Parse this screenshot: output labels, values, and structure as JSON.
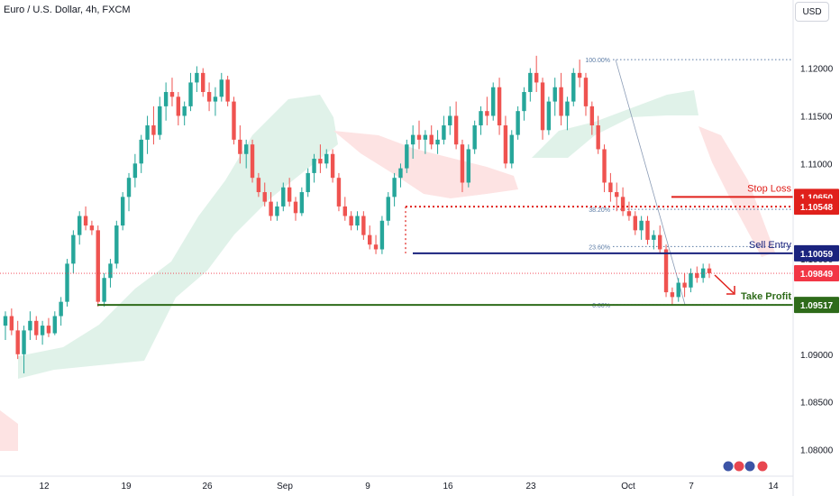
{
  "header": {
    "symbol": "Euro / U.S. Dollar, 4h, FXCM",
    "currency": "USD"
  },
  "colors": {
    "up": "#26a69a",
    "down": "#ef5350",
    "cloud_bull": "#e0f2e9",
    "cloud_bear": "#fde3e3",
    "stop_loss": "#e0201b",
    "sell_entry": "#1a237e",
    "take_profit": "#2e6b1a",
    "fib": "#5b7ba5",
    "last_price": "#f23645"
  },
  "chart_data": {
    "type": "candlestick",
    "title": "Euro / U.S. Dollar, 4h, FXCM",
    "ylim": [
      1.0775,
      1.1245
    ],
    "y_ticks": [
      "1.12000",
      "1.11500",
      "1.11000",
      "1.10500",
      "1.10000",
      "1.09500",
      "1.09000",
      "1.08500",
      "1.08000"
    ],
    "x_ticks": [
      "12",
      "19",
      "26",
      "Sep",
      "9",
      "16",
      "23",
      "Oct",
      "7",
      "14"
    ],
    "grid": false,
    "levels": [
      {
        "name": "Stop Loss",
        "value": 1.1065,
        "label": "1.10650",
        "kind": "stop"
      },
      {
        "name": "",
        "value": 1.10548,
        "label": "1.10548",
        "kind": "stop-dotted"
      },
      {
        "name": "Sell Entry",
        "value": 1.10059,
        "label": "1.10059",
        "kind": "entry"
      },
      {
        "name": "",
        "value": 1.09849,
        "label": "1.09849",
        "kind": "last"
      },
      {
        "name": "Take Profit",
        "value": 1.09517,
        "label": "1.09517",
        "kind": "target"
      }
    ],
    "fib_levels": [
      {
        "label": "100.00%",
        "value": 1.1209
      },
      {
        "label": "38.20%",
        "value": 1.1052
      },
      {
        "label": "23.60%",
        "value": 1.1013
      },
      {
        "label": "0.00%",
        "value": 1.0952
      }
    ],
    "candles_ohlc": [
      [
        1.093,
        1.0945,
        1.0915,
        1.094
      ],
      [
        1.094,
        1.0948,
        1.092,
        1.0925
      ],
      [
        1.0925,
        1.0935,
        1.0895,
        1.09
      ],
      [
        1.09,
        1.093,
        1.088,
        1.0925
      ],
      [
        1.0925,
        1.0945,
        1.0915,
        1.0935
      ],
      [
        1.0935,
        1.094,
        1.0915,
        1.092
      ],
      [
        1.092,
        1.0935,
        1.091,
        1.093
      ],
      [
        1.093,
        1.0938,
        1.0918,
        1.0922
      ],
      [
        1.0922,
        1.0945,
        1.092,
        1.094
      ],
      [
        1.094,
        1.096,
        1.093,
        1.0955
      ],
      [
        1.0955,
        1.1,
        1.095,
        1.0995
      ],
      [
        1.0995,
        1.103,
        1.0985,
        1.1025
      ],
      [
        1.1025,
        1.105,
        1.1015,
        1.1045
      ],
      [
        1.1045,
        1.1055,
        1.103,
        1.1035
      ],
      [
        1.1035,
        1.104,
        1.1025,
        1.103
      ],
      [
        1.103,
        1.1035,
        1.095,
        1.0955
      ],
      [
        1.0955,
        1.0985,
        1.095,
        1.098
      ],
      [
        1.098,
        1.1,
        1.097,
        1.0995
      ],
      [
        1.0995,
        1.104,
        1.099,
        1.1035
      ],
      [
        1.1035,
        1.107,
        1.103,
        1.1065
      ],
      [
        1.1065,
        1.109,
        1.105,
        1.1085
      ],
      [
        1.1085,
        1.111,
        1.1075,
        1.11
      ],
      [
        1.11,
        1.113,
        1.109,
        1.1125
      ],
      [
        1.1125,
        1.115,
        1.111,
        1.114
      ],
      [
        1.114,
        1.116,
        1.112,
        1.113
      ],
      [
        1.113,
        1.117,
        1.1125,
        1.116
      ],
      [
        1.116,
        1.1185,
        1.1145,
        1.1175
      ],
      [
        1.1175,
        1.119,
        1.116,
        1.117
      ],
      [
        1.117,
        1.1175,
        1.114,
        1.115
      ],
      [
        1.115,
        1.1165,
        1.114,
        1.116
      ],
      [
        1.116,
        1.1195,
        1.1155,
        1.1185
      ],
      [
        1.1185,
        1.1202,
        1.1175,
        1.1195
      ],
      [
        1.1195,
        1.12,
        1.117,
        1.1175
      ],
      [
        1.1175,
        1.1185,
        1.1155,
        1.1165
      ],
      [
        1.1165,
        1.118,
        1.115,
        1.117
      ],
      [
        1.117,
        1.1195,
        1.1165,
        1.1188
      ],
      [
        1.1188,
        1.1192,
        1.116,
        1.1165
      ],
      [
        1.1165,
        1.117,
        1.112,
        1.1125
      ],
      [
        1.1125,
        1.114,
        1.11,
        1.111
      ],
      [
        1.111,
        1.1125,
        1.1095,
        1.112
      ],
      [
        1.112,
        1.1125,
        1.108,
        1.1085
      ],
      [
        1.1085,
        1.109,
        1.1065,
        1.107
      ],
      [
        1.107,
        1.108,
        1.1055,
        1.106
      ],
      [
        1.106,
        1.107,
        1.104,
        1.1045
      ],
      [
        1.1045,
        1.106,
        1.104,
        1.1055
      ],
      [
        1.1055,
        1.108,
        1.105,
        1.1075
      ],
      [
        1.1075,
        1.1085,
        1.1055,
        1.106
      ],
      [
        1.106,
        1.1065,
        1.104,
        1.1048
      ],
      [
        1.1048,
        1.1075,
        1.1045,
        1.107
      ],
      [
        1.107,
        1.1095,
        1.1065,
        1.109
      ],
      [
        1.109,
        1.111,
        1.108,
        1.1105
      ],
      [
        1.1105,
        1.112,
        1.109,
        1.11
      ],
      [
        1.11,
        1.1115,
        1.1095,
        1.111
      ],
      [
        1.111,
        1.1115,
        1.108,
        1.1085
      ],
      [
        1.1085,
        1.109,
        1.105,
        1.1055
      ],
      [
        1.1055,
        1.1065,
        1.104,
        1.1045
      ],
      [
        1.1045,
        1.105,
        1.103,
        1.1035
      ],
      [
        1.1035,
        1.105,
        1.103,
        1.1045
      ],
      [
        1.1045,
        1.105,
        1.102,
        1.1025
      ],
      [
        1.1025,
        1.1035,
        1.101,
        1.1015
      ],
      [
        1.1015,
        1.1025,
        1.1005,
        1.101
      ],
      [
        1.101,
        1.1045,
        1.1005,
        1.104
      ],
      [
        1.104,
        1.107,
        1.1035,
        1.1065
      ],
      [
        1.1065,
        1.109,
        1.1055,
        1.1085
      ],
      [
        1.1085,
        1.11,
        1.1075,
        1.1095
      ],
      [
        1.1095,
        1.1125,
        1.109,
        1.112
      ],
      [
        1.112,
        1.114,
        1.1105,
        1.113
      ],
      [
        1.113,
        1.1145,
        1.1115,
        1.1125
      ],
      [
        1.1125,
        1.1135,
        1.111,
        1.113
      ],
      [
        1.113,
        1.114,
        1.1115,
        1.112
      ],
      [
        1.112,
        1.1135,
        1.111,
        1.1125
      ],
      [
        1.1125,
        1.115,
        1.112,
        1.114
      ],
      [
        1.114,
        1.116,
        1.113,
        1.115
      ],
      [
        1.115,
        1.1165,
        1.1115,
        1.112
      ],
      [
        1.112,
        1.1125,
        1.107,
        1.108
      ],
      [
        1.108,
        1.112,
        1.1075,
        1.1115
      ],
      [
        1.1115,
        1.1145,
        1.111,
        1.114
      ],
      [
        1.114,
        1.116,
        1.113,
        1.1155
      ],
      [
        1.1155,
        1.117,
        1.114,
        1.115
      ],
      [
        1.115,
        1.1185,
        1.1145,
        1.118
      ],
      [
        1.118,
        1.119,
        1.113,
        1.114
      ],
      [
        1.114,
        1.115,
        1.1095,
        1.11
      ],
      [
        1.11,
        1.1135,
        1.1095,
        1.113
      ],
      [
        1.113,
        1.116,
        1.1125,
        1.1155
      ],
      [
        1.1155,
        1.118,
        1.1145,
        1.1175
      ],
      [
        1.1175,
        1.12,
        1.1165,
        1.1195
      ],
      [
        1.1195,
        1.1213,
        1.1175,
        1.1185
      ],
      [
        1.1185,
        1.119,
        1.1125,
        1.1135
      ],
      [
        1.1135,
        1.117,
        1.113,
        1.1165
      ],
      [
        1.1165,
        1.119,
        1.115,
        1.118
      ],
      [
        1.118,
        1.1195,
        1.114,
        1.115
      ],
      [
        1.115,
        1.117,
        1.1135,
        1.1165
      ],
      [
        1.1165,
        1.12,
        1.116,
        1.1195
      ],
      [
        1.1195,
        1.1209,
        1.118,
        1.119
      ],
      [
        1.119,
        1.1195,
        1.115,
        1.116
      ],
      [
        1.116,
        1.1165,
        1.113,
        1.114
      ],
      [
        1.114,
        1.115,
        1.111,
        1.1115
      ],
      [
        1.1115,
        1.112,
        1.107,
        1.108
      ],
      [
        1.108,
        1.109,
        1.106,
        1.107
      ],
      [
        1.107,
        1.108,
        1.105,
        1.1065
      ],
      [
        1.1065,
        1.1075,
        1.1045,
        1.105
      ],
      [
        1.105,
        1.106,
        1.104,
        1.1045
      ],
      [
        1.1045,
        1.105,
        1.1025,
        1.103
      ],
      [
        1.103,
        1.1045,
        1.102,
        1.104
      ],
      [
        1.104,
        1.1045,
        1.1015,
        1.102
      ],
      [
        1.102,
        1.103,
        1.101,
        1.1025
      ],
      [
        1.1025,
        1.1035,
        1.1005,
        1.101
      ],
      [
        1.101,
        1.1015,
        1.096,
        1.0965
      ],
      [
        1.0965,
        1.097,
        1.0952,
        1.096
      ],
      [
        1.096,
        1.098,
        1.0955,
        1.0975
      ],
      [
        1.0975,
        1.0985,
        1.096,
        1.097
      ],
      [
        1.097,
        1.099,
        1.0965,
        1.0985
      ],
      [
        1.0985,
        1.0992,
        1.0975,
        1.098
      ],
      [
        1.098,
        1.0995,
        1.0975,
        1.099
      ],
      [
        1.099,
        1.0995,
        1.098,
        1.0985
      ]
    ]
  },
  "annotations": {
    "stop_loss": "Stop Loss",
    "sell_entry": "Sell Entry",
    "take_profit": "Take Profit"
  }
}
